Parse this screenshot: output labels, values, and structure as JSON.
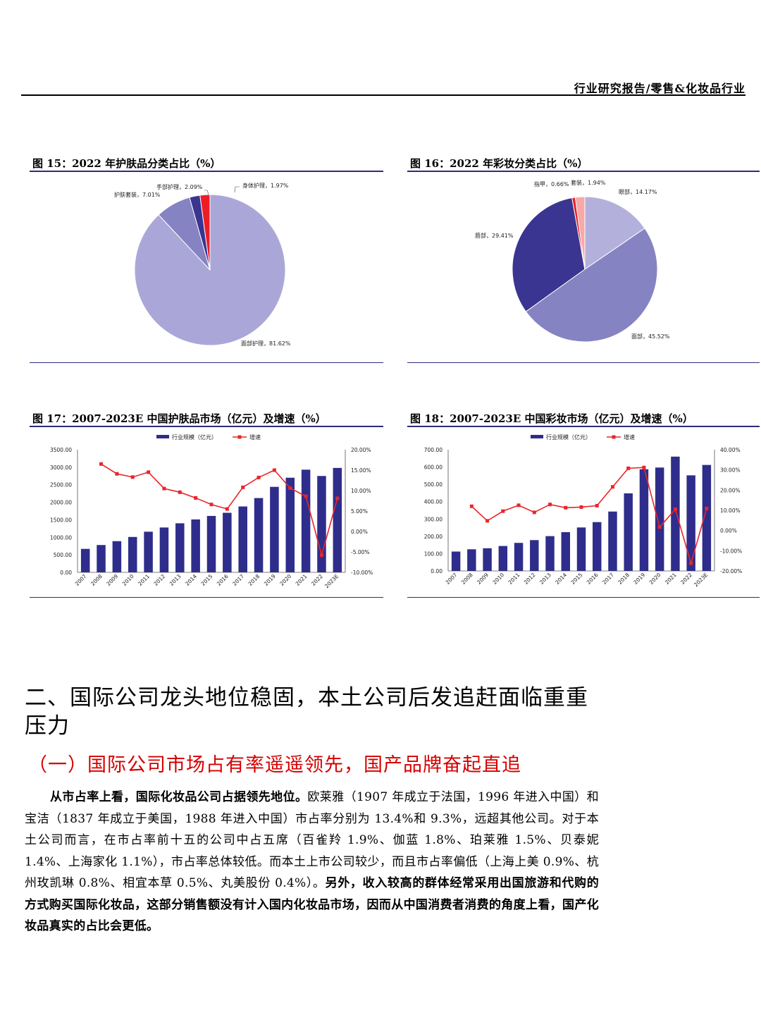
{
  "header": {
    "title": "行业研究报告/零售&化妆品行业"
  },
  "figures": {
    "fig15": {
      "title": "图 15：2022 年护肤品分类占比（%）",
      "chart_data": {
        "type": "pie",
        "slices": [
          {
            "label": "面部护理，81.62%",
            "value": 81.62,
            "color": "#aaa7d8"
          },
          {
            "label": "护肤套装，7.01%",
            "value": 7.01,
            "color": "#8683c2"
          },
          {
            "label": "手部护理，2.09%",
            "value": 2.09,
            "color": "#3a3591"
          },
          {
            "label": "身体护理，1.97%",
            "value": 1.97,
            "color": "#ee1c25"
          }
        ]
      }
    },
    "fig16": {
      "title": "图 16：2022 年彩妆分类占比（%）",
      "chart_data": {
        "type": "pie",
        "slices": [
          {
            "label": "眼部，14.17%",
            "value": 14.17,
            "color": "#b3b1dc"
          },
          {
            "label": "面部，45.52%",
            "value": 45.52,
            "color": "#8683c2"
          },
          {
            "label": "唇部，29.41%",
            "value": 29.41,
            "color": "#3a3591"
          },
          {
            "label": "指甲，0.66%",
            "value": 0.66,
            "color": "#ee1c25"
          },
          {
            "label": "套装，1.94%",
            "value": 1.94,
            "color": "#f7a9a8"
          }
        ]
      }
    },
    "fig17": {
      "title": "图 17：2007-2023E 中国护肤品市场（亿元）及增速（%）",
      "chart_data": {
        "type": "bar",
        "legend": [
          "行业规模（亿元）",
          "增速"
        ],
        "categories": [
          "2007",
          "2008",
          "2009",
          "2010",
          "2011",
          "2012",
          "2013",
          "2014",
          "2015",
          "2016",
          "2017",
          "2018",
          "2019",
          "2020",
          "2021",
          "2022",
          "2023E"
        ],
        "series": [
          {
            "name": "行业规模（亿元）",
            "kind": "bar",
            "axis": "left",
            "color": "#2e2d8c",
            "values": [
              670,
              780,
              890,
              1010,
              1160,
              1280,
              1400,
              1510,
              1610,
              1700,
              1880,
              2120,
              2440,
              2700,
              2930,
              2750,
              2980
            ]
          },
          {
            "name": "增速",
            "kind": "line",
            "axis": "right",
            "color": "#e8262a",
            "values": [
              null,
              16.5,
              14.1,
              13.3,
              14.5,
              10.5,
              9.6,
              8.2,
              6.6,
              5.5,
              10.8,
              13.2,
              15.0,
              10.6,
              8.6,
              -5.8,
              8.1
            ]
          }
        ],
        "left_ticks": [
          "0.00",
          "500.00",
          "1000.00",
          "1500.00",
          "2000.00",
          "2500.00",
          "3000.00",
          "3500.00"
        ],
        "right_ticks": [
          "-10.00%",
          "-5.00%",
          "0.00%",
          "5.00%",
          "10.00%",
          "15.00%",
          "20.00%"
        ],
        "ylim_left": [
          0,
          3500
        ],
        "ylim_right": [
          -10,
          20
        ]
      }
    },
    "fig18": {
      "title": "图 18：2007-2023E 中国彩妆市场（亿元）及增速（%）",
      "chart_data": {
        "type": "bar",
        "legend": [
          "行业规模（亿元）",
          "增速"
        ],
        "categories": [
          "2007",
          "2008",
          "2009",
          "2010",
          "2011",
          "2012",
          "2013",
          "2014",
          "2015",
          "2016",
          "2017",
          "2018",
          "2019",
          "2020",
          "2021",
          "2022",
          "2023E"
        ],
        "series": [
          {
            "name": "行业规模（亿元）",
            "kind": "bar",
            "axis": "left",
            "color": "#2e2d8c",
            "values": [
              112,
              125,
              131,
              144,
              162,
              178,
              201,
              224,
              251,
              282,
              343,
              448,
              587,
              597,
              660,
              552,
              612
            ]
          },
          {
            "name": "增速",
            "kind": "line",
            "axis": "right",
            "color": "#e8262a",
            "values": [
              null,
              12.0,
              4.8,
              9.6,
              12.5,
              9.0,
              12.9,
              11.3,
              11.6,
              12.3,
              21.6,
              30.8,
              31.2,
              1.7,
              10.5,
              -16.2,
              10.9
            ]
          }
        ],
        "left_ticks": [
          "0.00",
          "100.00",
          "200.00",
          "300.00",
          "400.00",
          "500.00",
          "600.00",
          "700.00"
        ],
        "right_ticks": [
          "-20.00%",
          "-10.00%",
          "0.00%",
          "10.00%",
          "20.00%",
          "30.00%",
          "40.00%"
        ],
        "ylim_left": [
          0,
          700
        ],
        "ylim_right": [
          -20,
          40
        ]
      }
    }
  },
  "section": {
    "heading": "二、国际公司龙头地位稳固，本土公司后发追赶面临重重压力",
    "subheading": "（一）国际公司市场占有率遥遥领先，国产品牌奋起直追",
    "p_bold1": "从市占率上看，国际化妆品公司占据领先地位。",
    "p_normal": "欧莱雅（1907 年成立于法国，1996 年进入中国）和宝洁（1837 年成立于美国，1988 年进入中国）市占率分别为 13.4%和 9.3%，远超其他公司。对于本土公司而言，在市占率前十五的公司中占五席（百雀羚 1.9%、伽蓝 1.8%、珀莱雅 1.5%、贝泰妮 1.4%、上海家化 1.1%），市占率总体较低。而本土上市公司较少，而且市占率偏低（上海上美 0.9%、杭州玫凯琳 0.8%、相宜本草 0.5%、丸美股份 0.4%）。",
    "p_bold2": "另外，收入较高的群体经常采用出国旅游和代购的方式购买国际化妆品，这部分销售额没有计入国内化妆品市场，因而从中国消费者消费的角度上看，国产化妆品真实的占比会更低。"
  }
}
